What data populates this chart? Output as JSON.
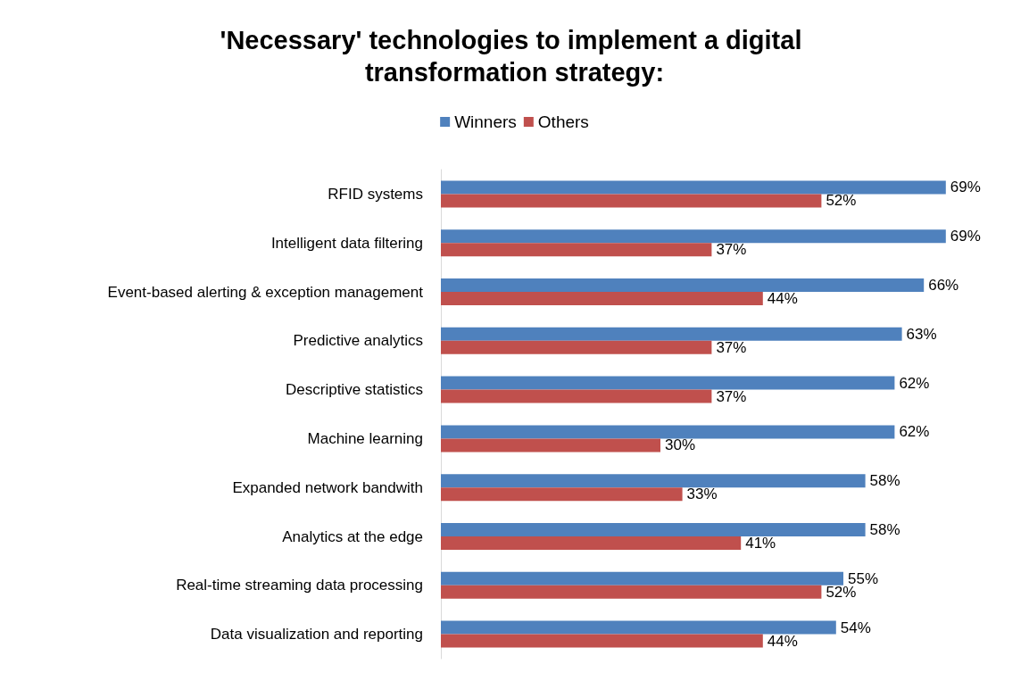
{
  "chart_data": {
    "type": "bar",
    "orientation": "horizontal",
    "title": "'Necessary' technologies to implement a digital transformation strategy:",
    "categories": [
      "RFID systems",
      "Intelligent data filtering",
      "Event-based alerting & exception management",
      "Predictive analytics",
      "Descriptive statistics",
      "Machine learning",
      "Expanded network bandwith",
      "Analytics at the edge",
      "Real-time streaming data processing",
      "Data visualization and reporting"
    ],
    "series": [
      {
        "name": "Winners",
        "color": "#4f81bd",
        "values": [
          69,
          69,
          66,
          63,
          62,
          62,
          58,
          58,
          55,
          54
        ],
        "value_labels": [
          "69%",
          "69%",
          "66%",
          "63%",
          "62%",
          "62%",
          "58%",
          "58%",
          "55%",
          "54%"
        ]
      },
      {
        "name": "Others",
        "color": "#c0504d",
        "values": [
          52,
          37,
          44,
          37,
          37,
          30,
          33,
          41,
          52,
          44
        ],
        "value_labels": [
          "52%",
          "37%",
          "44%",
          "37%",
          "37%",
          "30%",
          "33%",
          "41%",
          "52%",
          "44%"
        ]
      }
    ],
    "legend": "top"
  }
}
